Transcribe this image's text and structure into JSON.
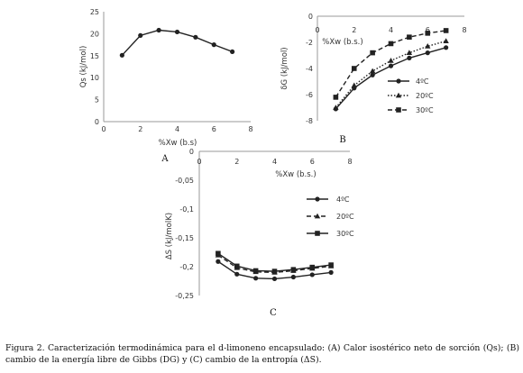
{
  "figure": {
    "caption": "Figura 2. Caracterización termodinámica para el d-limoneno encapsulado: (A) Calor isostérico neto de sorción (Qs); (B) cambio de la energía libre de Gibbs (DG) y (C) cambio de la entropía (ΔS).",
    "colors": {
      "axis": "#9a9a9a",
      "series": "#222222"
    }
  },
  "chart_data": [
    {
      "id": "A",
      "type": "line",
      "panel_label": "A",
      "xlabel": "%Xw (b.s)",
      "ylabel": "Qs (kJ/mol)",
      "xlim": [
        0,
        8
      ],
      "ylim": [
        0,
        25
      ],
      "xticks": [
        "0",
        "2",
        "4",
        "6",
        "8"
      ],
      "yticks": [
        "0",
        "5",
        "10",
        "15",
        "20",
        "25"
      ],
      "series": [
        {
          "name": "",
          "marker": "circle",
          "dash": "solid",
          "x": [
            1,
            2,
            3,
            4,
            5,
            6,
            7
          ],
          "y": [
            15.1,
            19.6,
            20.8,
            20.4,
            19.2,
            17.5,
            15.9
          ]
        }
      ]
    },
    {
      "id": "B",
      "type": "line",
      "panel_label": "B",
      "xlabel": "%Xw (b.s.)",
      "ylabel": "δG (kJ/mol)",
      "xlim": [
        0,
        8
      ],
      "ylim": [
        -8,
        0
      ],
      "xticks": [
        "0",
        "2",
        "4",
        "6",
        "8"
      ],
      "yticks": [
        "0",
        "-2",
        "-4",
        "-6",
        "-8"
      ],
      "legend": "right",
      "series": [
        {
          "name": "4ºC",
          "marker": "circle",
          "dash": "solid",
          "x": [
            1,
            2,
            3,
            4,
            5,
            6,
            7
          ],
          "y": [
            -7.1,
            -5.5,
            -4.5,
            -3.8,
            -3.2,
            -2.8,
            -2.4
          ]
        },
        {
          "name": "20ºC",
          "marker": "triangle",
          "dash": "dotted",
          "x": [
            1,
            2,
            3,
            4,
            5,
            6,
            7
          ],
          "y": [
            -7.0,
            -5.3,
            -4.2,
            -3.4,
            -2.8,
            -2.3,
            -1.9
          ]
        },
        {
          "name": "30ºC",
          "marker": "square",
          "dash": "dashed",
          "x": [
            1,
            2,
            3,
            4,
            5,
            6,
            7
          ],
          "y": [
            -6.2,
            -4.0,
            -2.8,
            -2.1,
            -1.6,
            -1.3,
            -1.1
          ]
        }
      ]
    },
    {
      "id": "C",
      "type": "line",
      "panel_label": "C",
      "xlabel": "%Xw (b.s.)",
      "ylabel": "ΔS (kJ/molK)",
      "xlim": [
        0,
        8
      ],
      "ylim": [
        -0.25,
        0
      ],
      "xticks": [
        "0",
        "2",
        "4",
        "6",
        "8"
      ],
      "yticks": [
        "0",
        "-0,05",
        "-0,1",
        "-0,15",
        "-0,2",
        "-0,25"
      ],
      "legend": "right",
      "series": [
        {
          "name": "4ºC",
          "marker": "circle",
          "dash": "solid",
          "x": [
            1,
            2,
            3,
            4,
            5,
            6,
            7
          ],
          "y": [
            -0.191,
            -0.213,
            -0.22,
            -0.221,
            -0.218,
            -0.214,
            -0.21
          ]
        },
        {
          "name": "20ºC",
          "marker": "triangle",
          "dash": "dashed",
          "x": [
            1,
            2,
            3,
            4,
            5,
            6,
            7
          ],
          "y": [
            -0.18,
            -0.202,
            -0.209,
            -0.21,
            -0.207,
            -0.203,
            -0.199
          ]
        },
        {
          "name": "30ºC",
          "marker": "square",
          "dash": "solid",
          "x": [
            1,
            2,
            3,
            4,
            5,
            6,
            7
          ],
          "y": [
            -0.177,
            -0.199,
            -0.207,
            -0.208,
            -0.205,
            -0.201,
            -0.197
          ]
        }
      ]
    }
  ]
}
